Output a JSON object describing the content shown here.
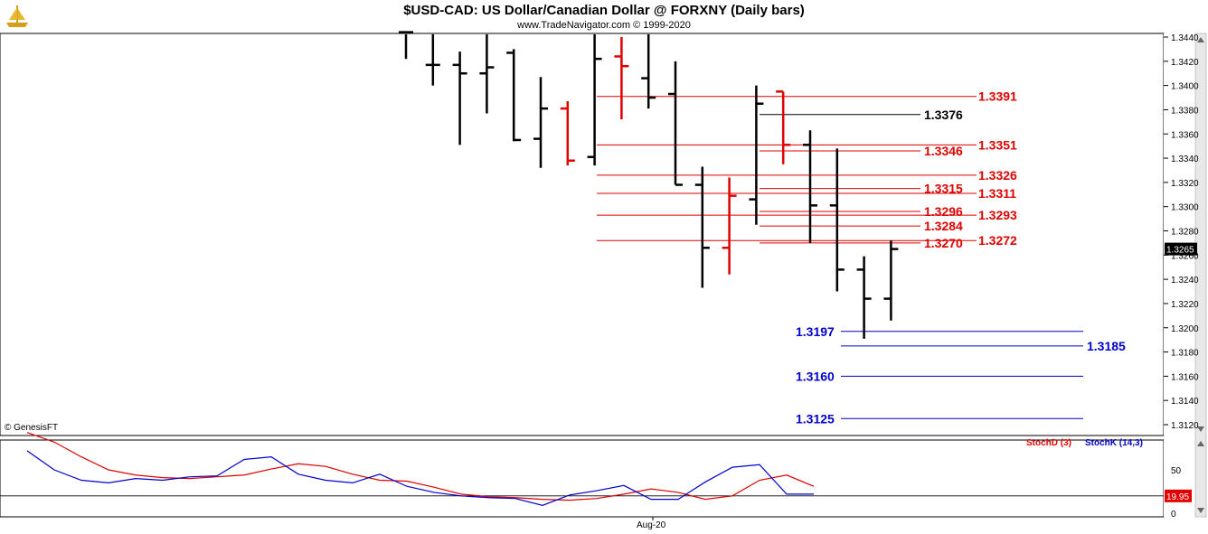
{
  "header": {
    "title": "$USD-CAD:  US Dollar/Canadian Dollar @ FORXNY  (Daily bars)",
    "subtitle": "www.TradeNavigator.com © 1999-2020",
    "copyright": "© GenesisFT"
  },
  "colors": {
    "up_bar": "#000000",
    "down_bar": "#e00000",
    "red_level": "#e00000",
    "black_level": "#000000",
    "blue_level": "#0000cc",
    "stoch_d": "#e00000",
    "stoch_k": "#0000cc"
  },
  "chart_data": [
    {
      "type": "ohlc",
      "y_tick_labels": [
        "1.3440",
        "1.3420",
        "1.3400",
        "1.3380",
        "1.3360",
        "1.3340",
        "1.3320",
        "1.3300",
        "1.3280",
        "1.3260",
        "1.3240",
        "1.3220",
        "1.3200",
        "1.3180",
        "1.3160",
        "1.3140",
        "1.3120"
      ],
      "ylim": [
        1.311,
        1.3445
      ],
      "last_price": "1.3265",
      "bars": [
        {
          "h": 1.3444,
          "l": 1.3422,
          "o": 1.3444,
          "c": 1.3444,
          "dir": "up"
        },
        {
          "h": 1.3444,
          "l": 1.34,
          "o": 1.3417,
          "c": 1.3417,
          "dir": "up"
        },
        {
          "h": 1.3428,
          "l": 1.3351,
          "o": 1.3417,
          "c": 1.341,
          "dir": "up"
        },
        {
          "h": 1.3444,
          "l": 1.3377,
          "o": 1.341,
          "c": 1.3415,
          "dir": "up"
        },
        {
          "h": 1.343,
          "l": 1.3354,
          "o": 1.3427,
          "c": 1.3355,
          "dir": "up"
        },
        {
          "h": 1.3407,
          "l": 1.3332,
          "o": 1.3356,
          "c": 1.3381,
          "dir": "up"
        },
        {
          "h": 1.3387,
          "l": 1.3334,
          "o": 1.3381,
          "c": 1.3338,
          "dir": "down"
        },
        {
          "h": 1.3444,
          "l": 1.3334,
          "o": 1.3341,
          "c": 1.3422,
          "dir": "up"
        },
        {
          "h": 1.344,
          "l": 1.3372,
          "o": 1.3424,
          "c": 1.3416,
          "dir": "down"
        },
        {
          "h": 1.3444,
          "l": 1.3381,
          "o": 1.3406,
          "c": 1.339,
          "dir": "up"
        },
        {
          "h": 1.342,
          "l": 1.3318,
          "o": 1.3393,
          "c": 1.3318,
          "dir": "up"
        },
        {
          "h": 1.3333,
          "l": 1.3233,
          "o": 1.3318,
          "c": 1.3266,
          "dir": "up"
        },
        {
          "h": 1.3324,
          "l": 1.3244,
          "o": 1.3266,
          "c": 1.3309,
          "dir": "down"
        },
        {
          "h": 1.34,
          "l": 1.3285,
          "o": 1.3306,
          "c": 1.3385,
          "dir": "up"
        },
        {
          "h": 1.3395,
          "l": 1.3335,
          "o": 1.3395,
          "c": 1.3351,
          "dir": "down"
        },
        {
          "h": 1.3363,
          "l": 1.327,
          "o": 1.3351,
          "c": 1.3301,
          "dir": "up"
        },
        {
          "h": 1.3348,
          "l": 1.323,
          "o": 1.3301,
          "c": 1.3248,
          "dir": "up"
        },
        {
          "h": 1.3259,
          "l": 1.3191,
          "o": 1.3248,
          "c": 1.3224,
          "dir": "up"
        },
        {
          "h": 1.3272,
          "l": 1.3206,
          "o": 1.3224,
          "c": 1.3265,
          "dir": "up"
        }
      ],
      "levels": [
        {
          "value": 1.3391,
          "label": "1.3391",
          "color": "red",
          "side": "right"
        },
        {
          "value": 1.3376,
          "label": "1.3376",
          "color": "black",
          "side": "left"
        },
        {
          "value": 1.3351,
          "label": "1.3351",
          "color": "red",
          "side": "right"
        },
        {
          "value": 1.3346,
          "label": "1.3346",
          "color": "red",
          "side": "left"
        },
        {
          "value": 1.3326,
          "label": "1.3326",
          "color": "red",
          "side": "right"
        },
        {
          "value": 1.3315,
          "label": "1.3315",
          "color": "red",
          "side": "left"
        },
        {
          "value": 1.3311,
          "label": "1.3311",
          "color": "red",
          "side": "right"
        },
        {
          "value": 1.3296,
          "label": "1.3296",
          "color": "red",
          "side": "left"
        },
        {
          "value": 1.3293,
          "label": "1.3293",
          "color": "red",
          "side": "right"
        },
        {
          "value": 1.3284,
          "label": "1.3284",
          "color": "red",
          "side": "left"
        },
        {
          "value": 1.3272,
          "label": "1.3272",
          "color": "red",
          "side": "right"
        },
        {
          "value": 1.327,
          "label": "1.3270",
          "color": "red",
          "side": "left"
        },
        {
          "value": 1.3197,
          "label": "1.3197",
          "color": "blue",
          "side": "left"
        },
        {
          "value": 1.3185,
          "label": "1.3185",
          "color": "blue",
          "side": "right"
        },
        {
          "value": 1.316,
          "label": "1.3160",
          "color": "blue",
          "side": "left"
        },
        {
          "value": 1.3125,
          "label": "1.3125",
          "color": "blue",
          "side": "left"
        }
      ]
    },
    {
      "type": "line",
      "legend": [
        "StochD (3)",
        "StochK (14,3)"
      ],
      "y_tick_labels": [
        "50",
        "0"
      ],
      "ylim": [
        0,
        100
      ],
      "x_tick_labels": [
        "Aug-20"
      ],
      "last_value": "19.95",
      "series": [
        {
          "name": "StochD (3)",
          "values": [
            93,
            82,
            65,
            50,
            44,
            41,
            40,
            42,
            44,
            51,
            57,
            54,
            45,
            38,
            37,
            30,
            22,
            19,
            18,
            16,
            15,
            17,
            22,
            28,
            24,
            16,
            20,
            38,
            44,
            31
          ]
        },
        {
          "name": "StochK (14,3)",
          "values": [
            72,
            50,
            38,
            35,
            40,
            38,
            42,
            43,
            62,
            65,
            45,
            38,
            35,
            45,
            31,
            24,
            20,
            18,
            17,
            9,
            21,
            26,
            32,
            16,
            16,
            36,
            53,
            56,
            22,
            22
          ]
        }
      ]
    }
  ]
}
